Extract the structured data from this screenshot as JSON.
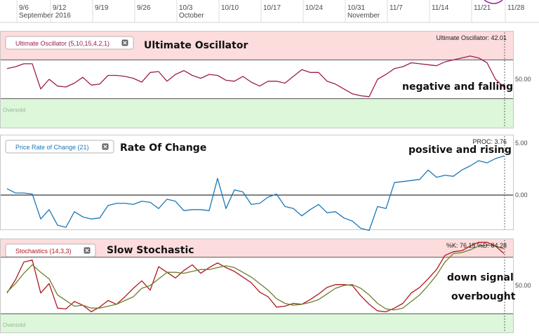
{
  "x_axis": {
    "ticks": [
      {
        "label": "9/6",
        "sub": "September 2016",
        "i": 0
      },
      {
        "label": "9/12",
        "sub": "",
        "i": 4
      },
      {
        "label": "9/19",
        "sub": "",
        "i": 9
      },
      {
        "label": "9/26",
        "sub": "",
        "i": 14
      },
      {
        "label": "10/3",
        "sub": "October",
        "i": 19
      },
      {
        "label": "10/10",
        "sub": "",
        "i": 24
      },
      {
        "label": "10/17",
        "sub": "",
        "i": 29
      },
      {
        "label": "10/24",
        "sub": "",
        "i": 34
      },
      {
        "label": "10/31",
        "sub": "November",
        "i": 39
      },
      {
        "label": "11/7",
        "sub": "",
        "i": 44
      },
      {
        "label": "11/14",
        "sub": "",
        "i": 49
      },
      {
        "label": "11/21",
        "sub": "",
        "i": 54
      },
      {
        "label": "11/28",
        "sub": "",
        "i": 58
      }
    ]
  },
  "colors": {
    "uo": "#9c1c54",
    "proc": "#1b77b8",
    "stoch_k": "#b0161d",
    "stoch_d": "#6b7f2e",
    "overbought_band": "#fcdcdc",
    "oversold_band": "#dcf7d9"
  },
  "chart_data": [
    {
      "type": "line",
      "title": "Ultimate Oscillator (5,10,15,4,2,1)",
      "readout": "Ultimate Oscillator: 42.01",
      "ylim": [
        0,
        100
      ],
      "yticks": [
        "50.00"
      ],
      "overbought": 70,
      "oversold": 30,
      "zone_label": "Oversold",
      "annotations": [
        "Ultimate Oscillator",
        "negative and falling"
      ],
      "series": [
        {
          "values": [
            61,
            63,
            66,
            66,
            40,
            50,
            43,
            42,
            46,
            52,
            44,
            45,
            54,
            54,
            53,
            51,
            47,
            57,
            58,
            48,
            55,
            59,
            54,
            51,
            55,
            54,
            49,
            48,
            53,
            47,
            43,
            48,
            48,
            46,
            53,
            60,
            57,
            57,
            48,
            45,
            40,
            35,
            33,
            32,
            50,
            55,
            61,
            63,
            67,
            66,
            65,
            64,
            68,
            70,
            72,
            74,
            72,
            67,
            50,
            42
          ]
        }
      ]
    },
    {
      "type": "line",
      "title": "Price Rate of Change (21)",
      "readout": "PROC: 3.76",
      "ylim": [
        -3.3,
        5.8
      ],
      "yticks": [
        "5.00",
        "0.00"
      ],
      "zero_line": 0,
      "annotations": [
        "Rate Of Change",
        "positive and rising"
      ],
      "series": [
        {
          "values": [
            0.6,
            0.2,
            0.2,
            0.1,
            -2.3,
            -1.4,
            -2.9,
            -3.1,
            -1.6,
            -2.1,
            -2.3,
            -2.2,
            -1.0,
            -0.8,
            -0.8,
            -0.9,
            -0.6,
            -0.7,
            -1.3,
            -0.4,
            -0.6,
            -1.5,
            -1.4,
            -1.4,
            -1.5,
            1.6,
            -1.3,
            0.5,
            0.3,
            -0.9,
            -0.8,
            -0.2,
            0.1,
            -1.1,
            -1.3,
            -2.0,
            -1.4,
            -0.9,
            -1.7,
            -1.6,
            -2.2,
            -2.5,
            -3.2,
            -3.4,
            -1.1,
            -1.3,
            1.2,
            1.3,
            1.4,
            1.5,
            2.4,
            1.7,
            1.9,
            1.8,
            2.4,
            2.8,
            3.3,
            3.1,
            3.5,
            3.76
          ]
        }
      ]
    },
    {
      "type": "line",
      "title": "Stochastics (14,3,3)",
      "readout": "%K: 76.15 %D: 84.28",
      "ylim": [
        0,
        100
      ],
      "yticks": [
        "50.00"
      ],
      "overbought": 80,
      "oversold": 20,
      "zone_label": "Oversold",
      "annotations": [
        "Slow Stochastic",
        "down signal",
        "overbought"
      ],
      "series": [
        {
          "name": "%K",
          "values": [
            42,
            56,
            75,
            77,
            42,
            52,
            26,
            25,
            33,
            29,
            22,
            27,
            34,
            30,
            38,
            47,
            55,
            45,
            70,
            64,
            58,
            66,
            72,
            63,
            69,
            74,
            69,
            65,
            59,
            53,
            43,
            38,
            27,
            28,
            31,
            30,
            35,
            41,
            48,
            51,
            51,
            50,
            39,
            30,
            23,
            22,
            26,
            31,
            42,
            48,
            57,
            67,
            82,
            86,
            87,
            92,
            96,
            96,
            92,
            84
          ]
        },
        {
          "name": "%D",
          "values": [
            43,
            52,
            63,
            72,
            64,
            57,
            40,
            34,
            28,
            29,
            26,
            26,
            28,
            30,
            34,
            38,
            47,
            50,
            57,
            64,
            64,
            63,
            65,
            67,
            67,
            69,
            71,
            69,
            64,
            59,
            52,
            45,
            36,
            31,
            29,
            30,
            32,
            35,
            41,
            47,
            50,
            51,
            47,
            40,
            31,
            25,
            24,
            26,
            33,
            40,
            50,
            61,
            75,
            84,
            85,
            88,
            92,
            93,
            92,
            89
          ]
        }
      ]
    }
  ]
}
